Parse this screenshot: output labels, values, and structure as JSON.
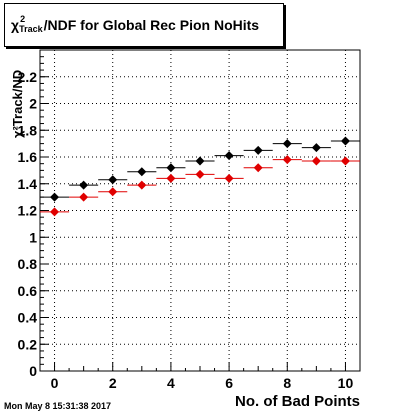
{
  "title": {
    "prefix": "χ",
    "sup": "2",
    "sub": "Track",
    "suffix": "/NDF for Global Rec Pion NoHits"
  },
  "timestamp": "Mon May  8 15:31:38 2017",
  "chart_data": {
    "type": "scatter",
    "xlabel": "No. of Bad Points",
    "ylabel": "χ²Track/ND",
    "xlim": [
      -0.5,
      10.5
    ],
    "ylim": [
      0,
      2.4
    ],
    "x_ticks": [
      0,
      2,
      4,
      6,
      8,
      10
    ],
    "y_ticks": [
      0,
      0.2,
      0.4,
      0.6,
      0.8,
      1,
      1.2,
      1.4,
      1.6,
      1.8,
      2,
      2.2
    ],
    "grid": true,
    "series": [
      {
        "color": "#000000",
        "x": [
          0,
          1,
          2,
          3,
          4,
          5,
          6,
          7,
          8,
          9,
          10
        ],
        "y": [
          1.3,
          1.39,
          1.43,
          1.49,
          1.52,
          1.57,
          1.61,
          1.65,
          1.7,
          1.67,
          1.72
        ]
      },
      {
        "color": "#e00000",
        "x": [
          0,
          1,
          2,
          3,
          4,
          5,
          6,
          7,
          8,
          9,
          10
        ],
        "y": [
          1.19,
          1.3,
          1.34,
          1.39,
          1.44,
          1.47,
          1.44,
          1.52,
          1.58,
          1.57,
          1.57
        ]
      }
    ]
  }
}
